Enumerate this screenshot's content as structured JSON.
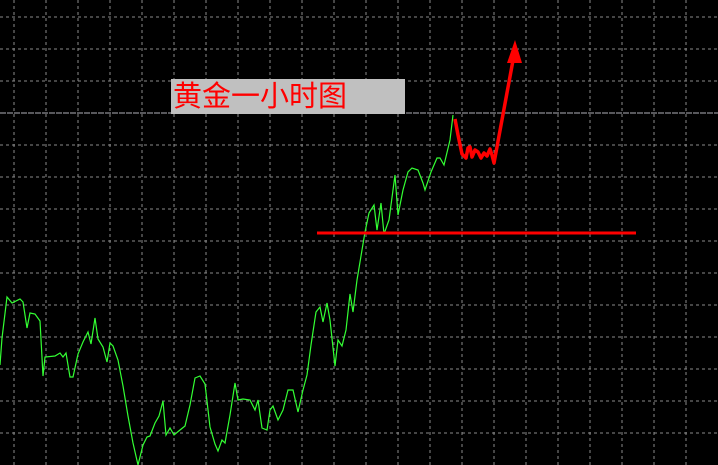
{
  "chart_data": {
    "type": "line",
    "title": "黄金一小时图",
    "xlabel": "",
    "ylabel": "",
    "grid": true,
    "colors": {
      "background": "#000000",
      "grid": "#8a8a8a",
      "price_line": "#b0b0b8",
      "series": "#33ff33",
      "annotation": "#ff0000",
      "title_box": "#c0c0c0"
    },
    "series": [
      {
        "points": [
          [
            0,
            100
          ],
          [
            2,
            127
          ],
          [
            7,
            168
          ],
          [
            12,
            162
          ],
          [
            20,
            166
          ],
          [
            23,
            163
          ],
          [
            27,
            137
          ],
          [
            30,
            152
          ],
          [
            35,
            151
          ],
          [
            40,
            144
          ],
          [
            43,
            89
          ],
          [
            45,
            108
          ],
          [
            55,
            109
          ],
          [
            60,
            112
          ],
          [
            63,
            108
          ],
          [
            66,
            112
          ],
          [
            70,
            88
          ],
          [
            73,
            88
          ],
          [
            78,
            111
          ],
          [
            83,
            123
          ],
          [
            88,
            133
          ],
          [
            91,
            121
          ],
          [
            95,
            147
          ],
          [
            98,
            126
          ],
          [
            103,
            118
          ],
          [
            107,
            103
          ],
          [
            110,
            122
          ],
          [
            113,
            119
          ],
          [
            118,
            105
          ],
          [
            123,
            79
          ],
          [
            128,
            49
          ],
          [
            133,
            22
          ],
          [
            138,
            0
          ],
          [
            143,
            20
          ],
          [
            147,
            28
          ],
          [
            150,
            29
          ],
          [
            155,
            42
          ],
          [
            159,
            49
          ],
          [
            163,
            64
          ],
          [
            166,
            30
          ],
          [
            170,
            37
          ],
          [
            174,
            30
          ],
          [
            180,
            35
          ],
          [
            185,
            39
          ],
          [
            190,
            60
          ],
          [
            195,
            87
          ],
          [
            200,
            89
          ],
          [
            205,
            81
          ],
          [
            210,
            38
          ],
          [
            215,
            21
          ],
          [
            218,
            14
          ],
          [
            222,
            25
          ],
          [
            225,
            22
          ],
          [
            230,
            50
          ],
          [
            235,
            82
          ],
          [
            238,
            65
          ],
          [
            243,
            66
          ],
          [
            250,
            65
          ],
          [
            255,
            55
          ],
          [
            258,
            65
          ],
          [
            262,
            37
          ],
          [
            267,
            35
          ],
          [
            270,
            55
          ],
          [
            273,
            59
          ],
          [
            278,
            45
          ],
          [
            283,
            55
          ],
          [
            288,
            75
          ],
          [
            293,
            75
          ],
          [
            298,
            53
          ],
          [
            303,
            75
          ],
          [
            307,
            90
          ],
          [
            311,
            120
          ],
          [
            316,
            153
          ],
          [
            320,
            158
          ],
          [
            323,
            143
          ],
          [
            327,
            162
          ],
          [
            330,
            145
          ],
          [
            335,
            99
          ],
          [
            338,
            125
          ],
          [
            342,
            119
          ],
          [
            346,
            135
          ],
          [
            350,
            171
          ],
          [
            353,
            153
          ],
          [
            357,
            185
          ],
          [
            362,
            215
          ],
          [
            365,
            233
          ],
          [
            369,
            252
          ],
          [
            374,
            260
          ],
          [
            377,
            235
          ],
          [
            381,
            262
          ],
          [
            384,
            231
          ],
          [
            389,
            245
          ],
          [
            395,
            290
          ],
          [
            398,
            250
          ],
          [
            403,
            275
          ],
          [
            408,
            293
          ],
          [
            412,
            297
          ],
          [
            418,
            295
          ],
          [
            423,
            282
          ],
          [
            425,
            275
          ],
          [
            431,
            293
          ],
          [
            437,
            307
          ],
          [
            440,
            307
          ],
          [
            444,
            300
          ],
          [
            450,
            325
          ],
          [
            453,
            350
          ]
        ]
      }
    ],
    "annotations": {
      "support_line": {
        "from": [
          317,
          232
        ],
        "to": [
          636,
          232
        ]
      },
      "projected_path": [
        [
          455,
          346
        ],
        [
          458,
          330
        ],
        [
          462,
          311
        ],
        [
          466,
          307
        ],
        [
          468,
          317
        ],
        [
          470,
          318
        ],
        [
          472,
          308
        ],
        [
          475,
          315
        ],
        [
          478,
          313
        ],
        [
          481,
          307
        ],
        [
          484,
          312
        ],
        [
          487,
          309
        ],
        [
          490,
          316
        ],
        [
          492,
          310
        ],
        [
          494,
          302
        ],
        [
          514,
          410
        ]
      ]
    }
  }
}
